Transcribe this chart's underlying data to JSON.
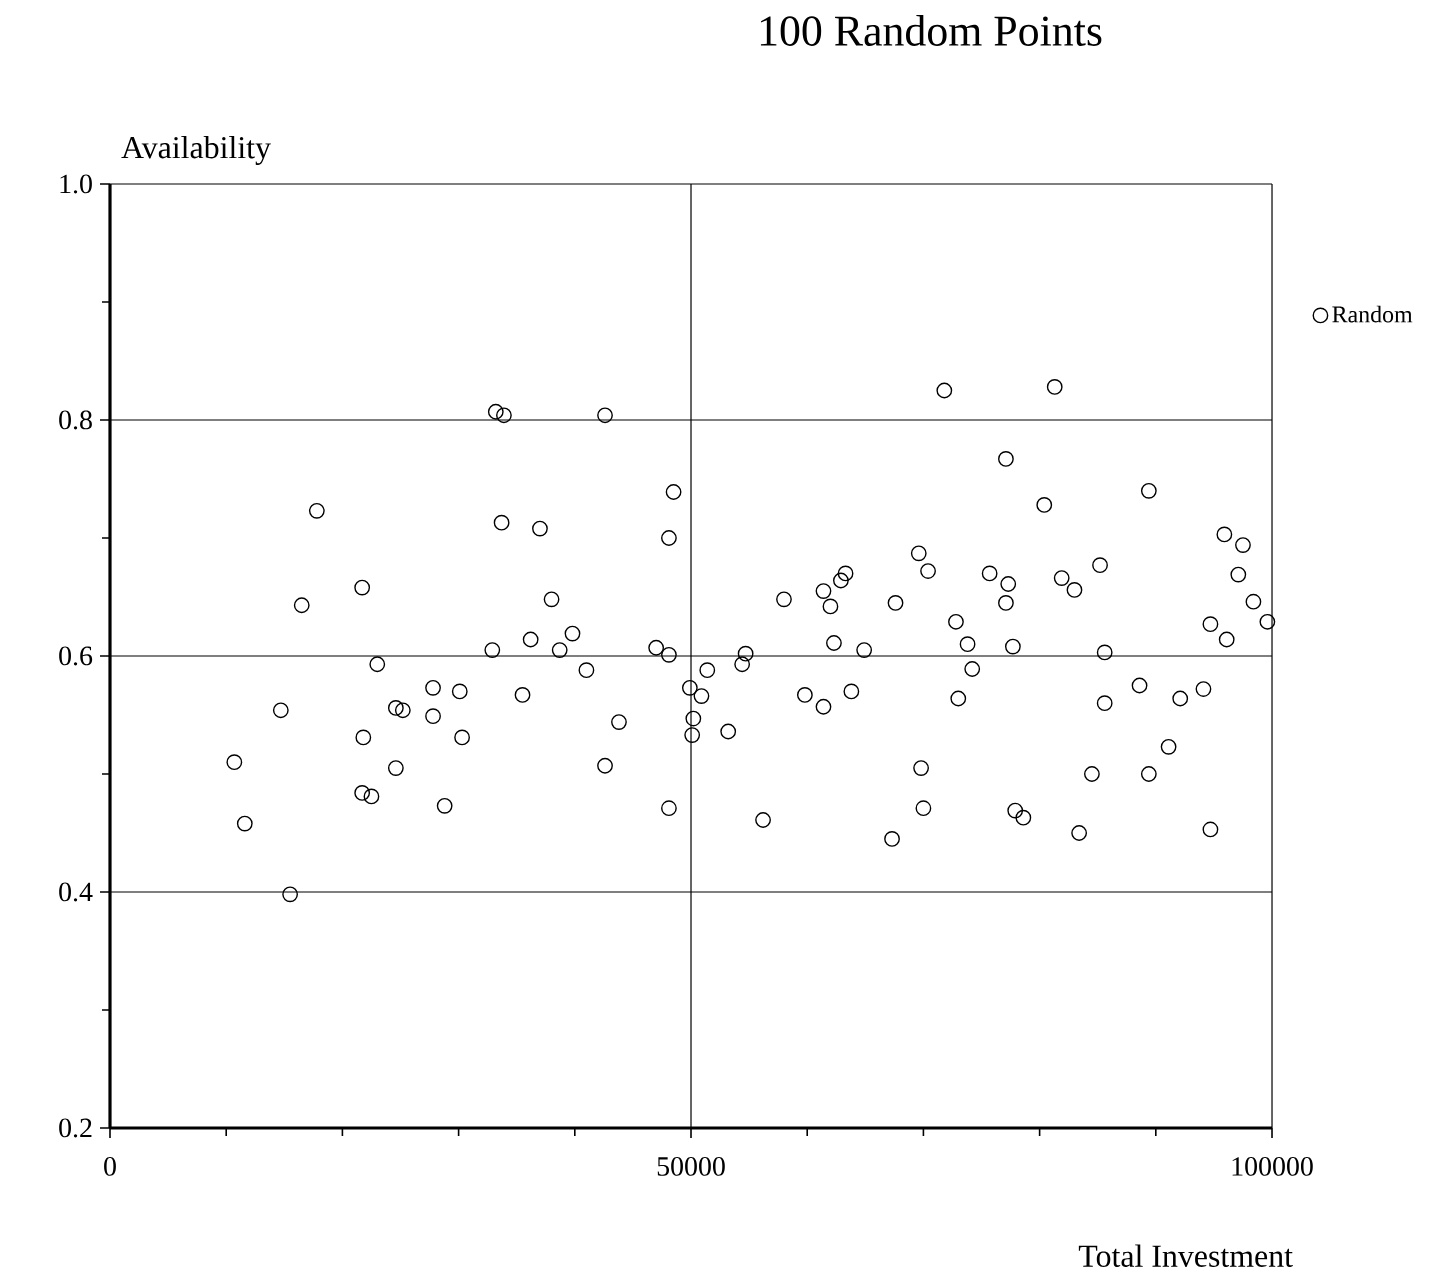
{
  "chart_data": {
    "type": "scatter",
    "title": "100 Random Points",
    "xlabel": "Total Investment",
    "ylabel": "Availability",
    "xlim": [
      0,
      100000
    ],
    "ylim": [
      0.2,
      1.0
    ],
    "xticks": [
      0,
      50000,
      100000
    ],
    "yticks": [
      0.2,
      0.4,
      0.6,
      0.8,
      {
        "value": 1,
        "label": "1.0"
      }
    ],
    "grid": true,
    "legend": "right",
    "marker": "circle",
    "series": [
      {
        "name": "Random",
        "color": "#000000",
        "x": [
          17800,
          16500,
          21700,
          33200,
          33900,
          42600,
          48500,
          33700,
          37000,
          48100,
          38000,
          36200,
          39800,
          32900,
          38700,
          47000,
          48100,
          23000,
          41000,
          51400,
          10700,
          11600,
          14700,
          15500,
          21800,
          21700,
          22500,
          24600,
          25200,
          24600,
          27800,
          27800,
          28800,
          30100,
          30300,
          35500,
          42600,
          43800,
          48100,
          49900,
          50900,
          50200,
          50100,
          71800,
          81300,
          77100,
          80400,
          89400,
          69600,
          70400,
          75700,
          77300,
          77100,
          81900,
          83000,
          85200,
          95900,
          97500,
          97100,
          98400,
          99600,
          94700,
          96100,
          58000,
          61400,
          62000,
          62900,
          63300,
          67600,
          72800,
          62300,
          64900,
          73800,
          77700,
          85600,
          54700,
          54400,
          53200,
          56200,
          59800,
          61400,
          63800,
          67300,
          69800,
          70000,
          74200,
          73000,
          77900,
          78600,
          83400,
          84500,
          85600,
          88600,
          89400,
          91100,
          92100,
          94100,
          94700
        ],
        "values": [
          0.723,
          0.643,
          0.658,
          0.807,
          0.804,
          0.804,
          0.739,
          0.713,
          0.708,
          0.7,
          0.648,
          0.614,
          0.619,
          0.605,
          0.605,
          0.607,
          0.601,
          0.593,
          0.588,
          0.588,
          0.51,
          0.458,
          0.554,
          0.398,
          0.531,
          0.484,
          0.481,
          0.556,
          0.554,
          0.505,
          0.573,
          0.549,
          0.473,
          0.57,
          0.531,
          0.567,
          0.507,
          0.544,
          0.471,
          0.573,
          0.566,
          0.547,
          0.533,
          0.825,
          0.828,
          0.767,
          0.728,
          0.74,
          0.687,
          0.672,
          0.67,
          0.661,
          0.645,
          0.666,
          0.656,
          0.677,
          0.703,
          0.694,
          0.669,
          0.646,
          0.629,
          0.627,
          0.614,
          0.648,
          0.655,
          0.642,
          0.664,
          0.67,
          0.645,
          0.629,
          0.611,
          0.605,
          0.61,
          0.608,
          0.603,
          0.602,
          0.593,
          0.536,
          0.461,
          0.567,
          0.557,
          0.57,
          0.445,
          0.505,
          0.471,
          0.589,
          0.564,
          0.469,
          0.463,
          0.45,
          0.5,
          0.56,
          0.575,
          0.5,
          0.523,
          0.564,
          0.572,
          0.453
        ]
      }
    ]
  }
}
